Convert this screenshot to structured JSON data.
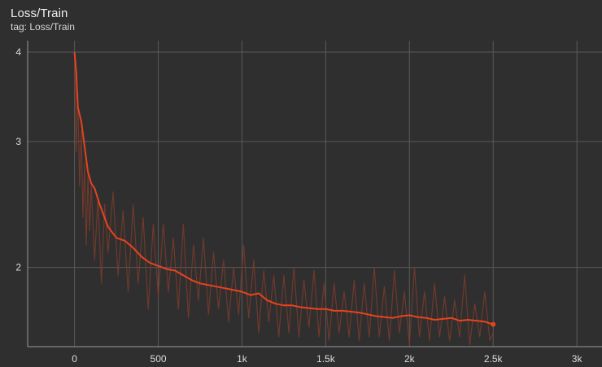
{
  "chart_data": {
    "type": "line",
    "title": "Loss/Train",
    "subtitle": "tag: Loss/Train",
    "xlabel": "",
    "ylabel": "",
    "y_scale": "log",
    "xlim": [
      -280,
      3150
    ],
    "ylim": [
      1.55,
      4.15
    ],
    "grid": true,
    "x_ticks": [
      {
        "value": 0,
        "label": "0"
      },
      {
        "value": 500,
        "label": "500"
      },
      {
        "value": 1000,
        "label": "1k"
      },
      {
        "value": 1500,
        "label": "1.5k"
      },
      {
        "value": 2000,
        "label": "2k"
      },
      {
        "value": 2500,
        "label": "2.5k"
      },
      {
        "value": 3000,
        "label": "3k"
      }
    ],
    "y_ticks": [
      {
        "value": 2,
        "label": "2"
      },
      {
        "value": 3,
        "label": "3"
      },
      {
        "value": 4,
        "label": "4"
      }
    ],
    "series": [
      {
        "smoothed": true,
        "color": "#e8431f",
        "x": [
          0,
          10,
          20,
          40,
          60,
          80,
          100,
          120,
          150,
          200,
          250,
          300,
          350,
          400,
          450,
          500,
          550,
          600,
          650,
          700,
          750,
          800,
          850,
          900,
          950,
          1000,
          1050,
          1100,
          1150,
          1200,
          1250,
          1300,
          1350,
          1400,
          1450,
          1500,
          1550,
          1600,
          1650,
          1700,
          1750,
          1800,
          1850,
          1900,
          1950,
          2000,
          2050,
          2100,
          2150,
          2200,
          2250,
          2300,
          2350,
          2400,
          2450,
          2500
        ],
        "y": [
          4.0,
          3.75,
          3.35,
          3.2,
          2.95,
          2.72,
          2.62,
          2.58,
          2.45,
          2.28,
          2.2,
          2.18,
          2.13,
          2.07,
          2.03,
          2.01,
          1.99,
          1.98,
          1.95,
          1.92,
          1.9,
          1.89,
          1.88,
          1.87,
          1.86,
          1.85,
          1.83,
          1.84,
          1.8,
          1.78,
          1.77,
          1.77,
          1.76,
          1.755,
          1.75,
          1.75,
          1.74,
          1.74,
          1.735,
          1.73,
          1.72,
          1.71,
          1.705,
          1.7,
          1.71,
          1.715,
          1.705,
          1.7,
          1.69,
          1.695,
          1.7,
          1.685,
          1.69,
          1.685,
          1.68,
          1.665
        ]
      },
      {
        "smoothed": false,
        "color": "#7a3b2c",
        "x": [
          0,
          10,
          20,
          30,
          40,
          50,
          60,
          70,
          80,
          90,
          100,
          120,
          140,
          160,
          180,
          200,
          230,
          260,
          290,
          320,
          350,
          380,
          410,
          440,
          470,
          500,
          530,
          560,
          590,
          620,
          650,
          680,
          710,
          740,
          770,
          800,
          830,
          860,
          890,
          920,
          950,
          980,
          1010,
          1040,
          1070,
          1100,
          1130,
          1160,
          1190,
          1220,
          1250,
          1280,
          1310,
          1340,
          1370,
          1400,
          1430,
          1460,
          1490,
          1520,
          1550,
          1580,
          1610,
          1640,
          1670,
          1700,
          1730,
          1760,
          1790,
          1820,
          1850,
          1880,
          1910,
          1940,
          1970,
          2000,
          2030,
          2060,
          2090,
          2120,
          2150,
          2180,
          2210,
          2240,
          2270,
          2300,
          2330,
          2360,
          2390,
          2420,
          2450,
          2480,
          2500
        ],
        "y": [
          4.0,
          2.9,
          3.5,
          2.6,
          3.1,
          2.35,
          2.8,
          2.15,
          2.7,
          2.25,
          2.6,
          2.05,
          2.5,
          1.9,
          2.45,
          2.1,
          2.55,
          1.95,
          2.4,
          1.85,
          2.45,
          1.9,
          2.35,
          1.75,
          2.3,
          1.82,
          2.3,
          1.85,
          2.2,
          1.75,
          2.3,
          1.7,
          2.15,
          1.8,
          2.2,
          1.72,
          2.1,
          1.75,
          2.05,
          1.68,
          2.0,
          1.72,
          2.15,
          1.7,
          2.05,
          1.62,
          1.98,
          1.68,
          1.95,
          1.6,
          1.95,
          1.62,
          2.0,
          1.6,
          1.92,
          1.65,
          1.98,
          1.6,
          1.9,
          1.58,
          1.9,
          1.62,
          1.85,
          1.6,
          1.92,
          1.58,
          1.9,
          1.6,
          2.0,
          1.6,
          1.88,
          1.58,
          1.98,
          1.62,
          1.85,
          1.56,
          2.0,
          1.6,
          1.85,
          1.58,
          1.9,
          1.6,
          1.82,
          1.58,
          1.8,
          1.6,
          1.95,
          1.56,
          1.78,
          1.6,
          1.85,
          1.58,
          1.62
        ]
      }
    ]
  }
}
